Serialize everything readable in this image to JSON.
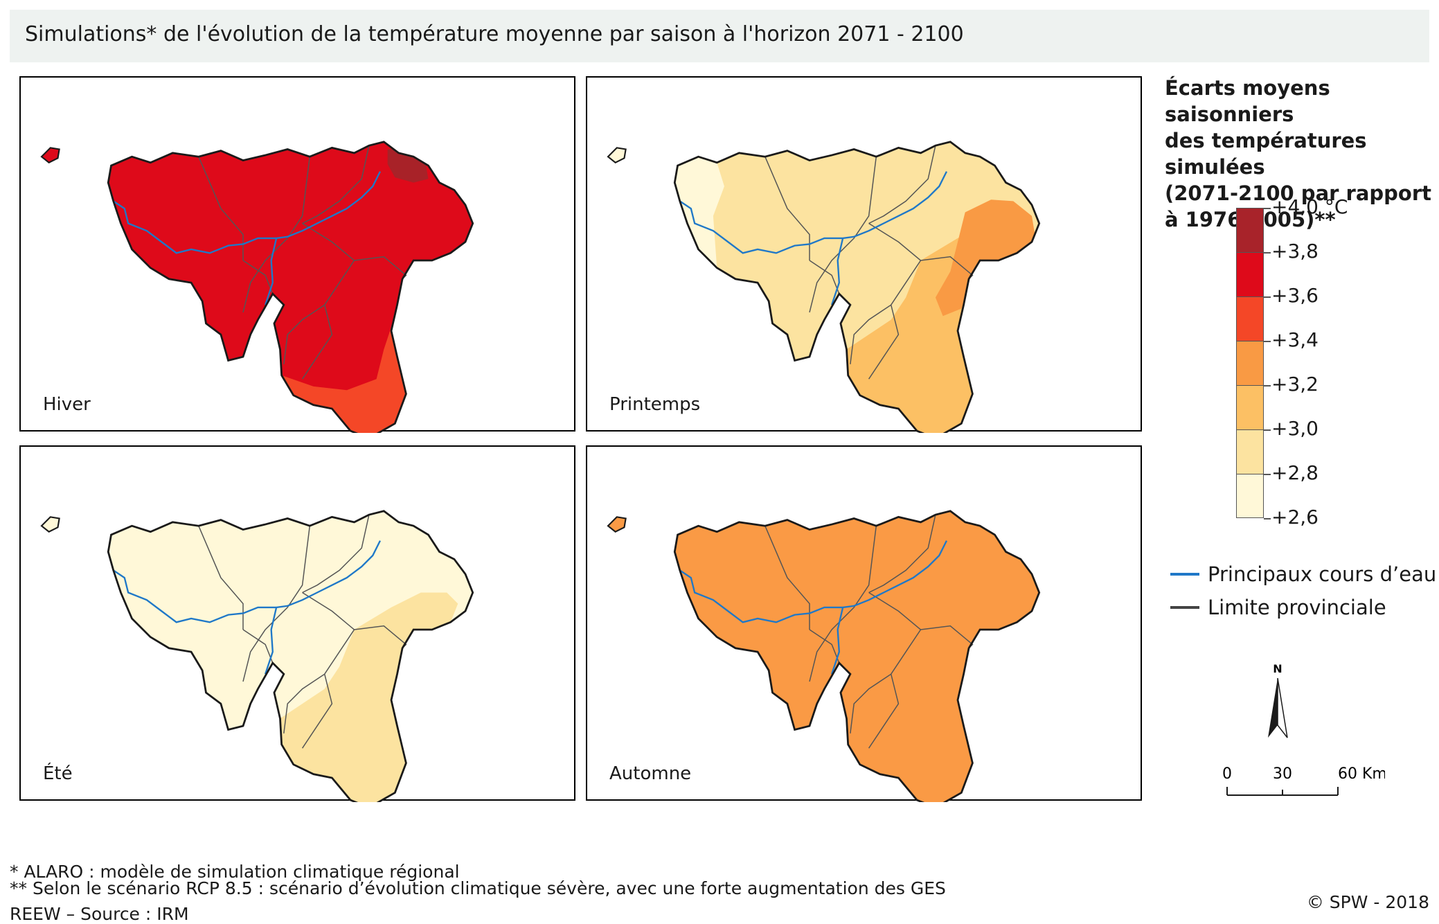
{
  "title": "Simulations* de l'évolution de la température moyenne par saison à l'horizon 2071 - 2100",
  "panels": [
    {
      "label": "Hiver",
      "base": "#de0a1a",
      "zones": [
        {
          "color": "#a82228",
          "where": "north-east corner"
        },
        {
          "color": "#f44727",
          "where": "south and south-east edge"
        }
      ]
    },
    {
      "label": "Printemps",
      "base": "#fce3a0",
      "zones": [
        {
          "color": "#fff8d8",
          "where": "west"
        },
        {
          "color": "#fcc064",
          "where": "south-east"
        },
        {
          "color": "#f99a44",
          "where": "east"
        }
      ]
    },
    {
      "label": "Été",
      "base": "#fff8d8",
      "zones": [
        {
          "color": "#fce3a0",
          "where": "south-east"
        }
      ]
    },
    {
      "label": "Automne",
      "base": "#fa9a45",
      "zones": []
    }
  ],
  "legend": {
    "title": "Écarts moyens saisonniers\ndes températures simulées\n(2071-2100 par rapport\nà 1976-2005)**",
    "classes": [
      {
        "color": "#a8232a"
      },
      {
        "color": "#de0a1a"
      },
      {
        "color": "#f44727"
      },
      {
        "color": "#f99a44"
      },
      {
        "color": "#fcc064"
      },
      {
        "color": "#fce3a0"
      },
      {
        "color": "#fff8d8"
      }
    ],
    "ticks": [
      "+4,0 °C",
      "+3,8",
      "+3,6",
      "+3,4",
      "+3,2",
      "+3,0",
      "+2,8",
      "+2,6"
    ],
    "rivers_label": "Principaux cours d’eau",
    "rivers_color": "#1f78c8",
    "boundary_label": "Limite provinciale",
    "boundary_color": "#444444"
  },
  "north_label": "N",
  "scale": {
    "ticks": [
      "0",
      "30",
      "60 Km"
    ]
  },
  "footnotes": [
    "* ALARO : modèle de simulation climatique régional",
    "** Selon le scénario RCP 8.5 : scénario d’évolution climatique sévère, avec une forte augmentation des GES",
    "REEW – Source : IRM"
  ],
  "credit": "© SPW - 2018"
}
